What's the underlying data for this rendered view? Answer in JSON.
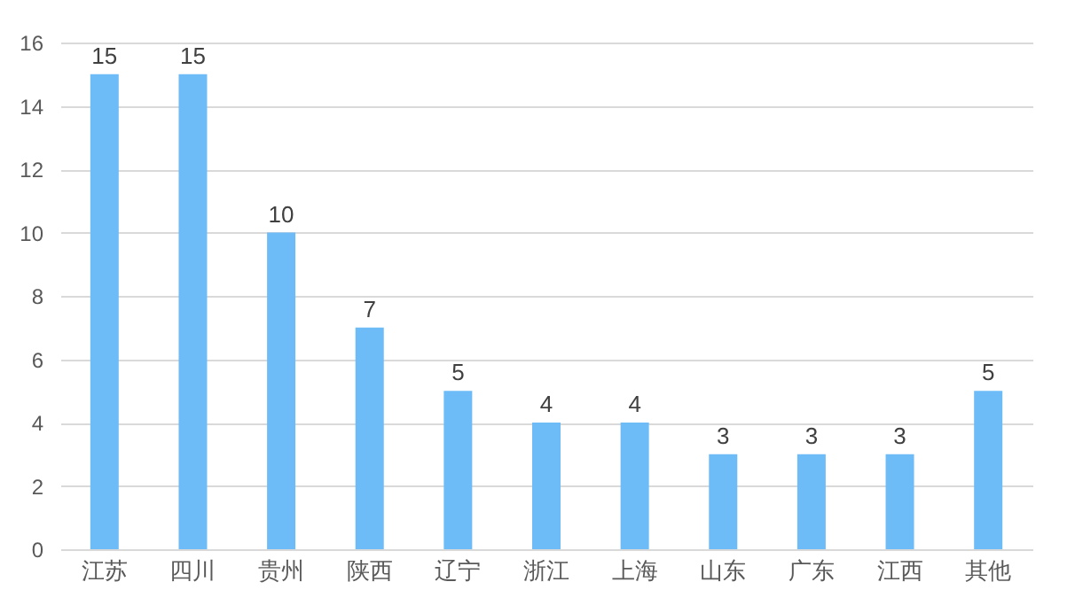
{
  "chart_data": {
    "type": "bar",
    "categories": [
      "江苏",
      "四川",
      "贵州",
      "陕西",
      "辽宁",
      "浙江",
      "上海",
      "山东",
      "广东",
      "江西",
      "其他"
    ],
    "values": [
      15,
      15,
      10,
      7,
      5,
      4,
      4,
      3,
      3,
      3,
      5
    ],
    "color": "#6dbcf8",
    "ylim": [
      0,
      16
    ],
    "yticks": [
      0,
      2,
      4,
      6,
      8,
      10,
      12,
      14,
      16
    ],
    "grid": "y",
    "data_labels": true
  }
}
